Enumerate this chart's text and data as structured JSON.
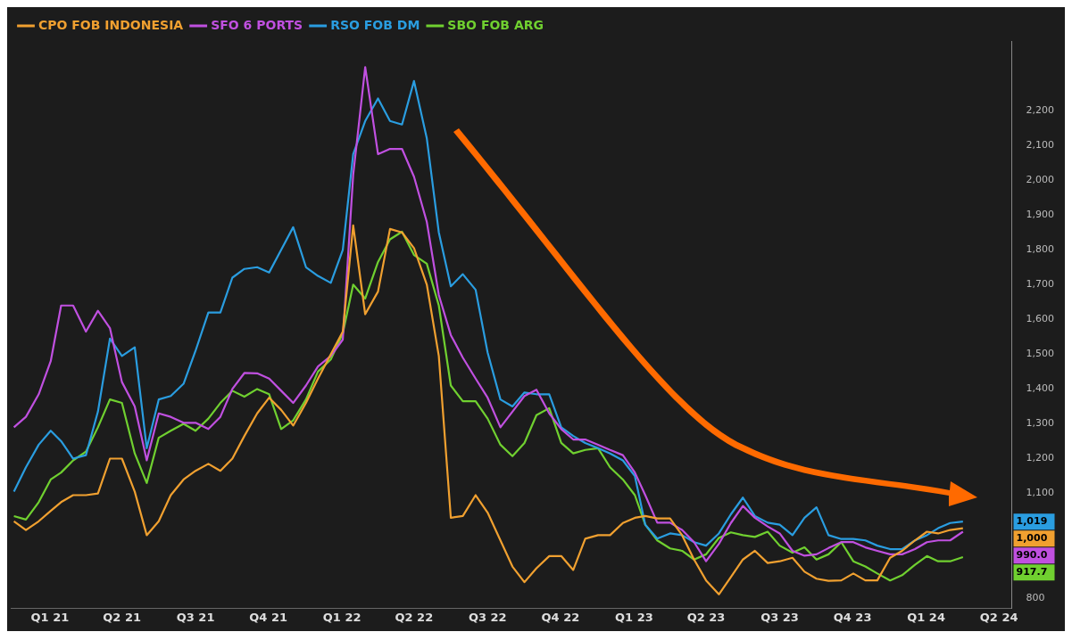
{
  "chart_data": {
    "type": "line",
    "legend": "top left",
    "grid": false,
    "marker": "none",
    "line_style": "solid",
    "x": [
      "2021-01-01",
      "2021-01-16",
      "2021-02-01",
      "2021-02-16",
      "2021-03-01",
      "2021-03-16",
      "2021-04-01",
      "2021-04-16",
      "2021-05-01",
      "2021-05-16",
      "2021-06-01",
      "2021-06-16",
      "2021-07-01",
      "2021-07-16",
      "2021-08-01",
      "2021-08-16",
      "2021-09-01",
      "2021-09-16",
      "2021-10-01",
      "2021-10-16",
      "2021-11-01",
      "2021-11-16",
      "2021-12-01",
      "2021-12-16",
      "2022-01-01",
      "2022-01-16",
      "2022-02-01",
      "2022-02-16",
      "2022-03-01",
      "2022-03-16",
      "2022-04-01",
      "2022-04-16",
      "2022-05-01",
      "2022-05-16",
      "2022-06-01",
      "2022-06-16",
      "2022-07-01",
      "2022-07-16",
      "2022-08-01",
      "2022-08-16",
      "2022-09-01",
      "2022-09-16",
      "2022-10-01",
      "2022-10-16",
      "2022-11-01",
      "2022-11-16",
      "2022-12-01",
      "2022-12-16",
      "2023-01-01",
      "2023-01-16",
      "2023-02-01",
      "2023-02-16",
      "2023-03-01",
      "2023-03-16",
      "2023-04-01",
      "2023-04-16",
      "2023-05-01",
      "2023-05-16",
      "2023-06-01",
      "2023-06-16",
      "2023-07-01",
      "2023-07-16",
      "2023-08-01",
      "2023-08-16",
      "2023-09-01",
      "2023-09-16",
      "2023-10-01",
      "2023-10-16",
      "2023-11-01",
      "2023-11-16",
      "2023-12-01",
      "2023-12-16",
      "2024-01-01",
      "2024-01-16",
      "2024-02-01",
      "2024-02-16",
      "2024-03-01",
      "2024-03-16",
      "2024-04-01"
    ],
    "xlim": [
      "2020-12-28",
      "2024-06-01"
    ],
    "xticks": [
      {
        "value": "2021-02-15",
        "label": "Q1 21"
      },
      {
        "value": "2021-05-16",
        "label": "Q2 21"
      },
      {
        "value": "2021-08-16",
        "label": "Q3 21"
      },
      {
        "value": "2021-11-15",
        "label": "Q4 21"
      },
      {
        "value": "2022-02-15",
        "label": "Q1 22"
      },
      {
        "value": "2022-05-16",
        "label": "Q2 22"
      },
      {
        "value": "2022-08-16",
        "label": "Q3 22"
      },
      {
        "value": "2022-11-15",
        "label": "Q4 22"
      },
      {
        "value": "2023-02-15",
        "label": "Q1 23"
      },
      {
        "value": "2023-05-16",
        "label": "Q2 23"
      },
      {
        "value": "2023-08-16",
        "label": "Q3 23"
      },
      {
        "value": "2023-11-15",
        "label": "Q4 23"
      },
      {
        "value": "2024-02-15",
        "label": "Q1 24"
      },
      {
        "value": "2024-05-16",
        "label": "Q2 24"
      }
    ],
    "ylim": [
      770,
      2400
    ],
    "yticks": [
      {
        "value": 800,
        "label": "800"
      },
      {
        "value": 1100,
        "label": "1,100"
      },
      {
        "value": 1200,
        "label": "1,200"
      },
      {
        "value": 1300,
        "label": "1,300"
      },
      {
        "value": 1400,
        "label": "1,400"
      },
      {
        "value": 1500,
        "label": "1,500"
      },
      {
        "value": 1600,
        "label": "1,600"
      },
      {
        "value": 1700,
        "label": "1,700"
      },
      {
        "value": 1800,
        "label": "1,800"
      },
      {
        "value": 1900,
        "label": "1,900"
      },
      {
        "value": 2000,
        "label": "2,000"
      },
      {
        "value": 2100,
        "label": "2,100"
      },
      {
        "value": 2200,
        "label": "2,200"
      }
    ],
    "annotations": [
      "1,019",
      "1,000",
      "990.0",
      "917.7"
    ],
    "series": [
      {
        "name": "CPO FOB INDONESIA",
        "color": "#f0a030",
        "values": [
          1020,
          995,
          1020,
          1050,
          1075,
          1095,
          1095,
          1100,
          1200,
          1200,
          1105,
          980,
          1020,
          1095,
          1140,
          1165,
          1185,
          1165,
          1200,
          1265,
          1330,
          1375,
          1340,
          1295,
          1360,
          1430,
          1500,
          1565,
          1870,
          1615,
          1680,
          1860,
          1850,
          1805,
          1700,
          1495,
          1030,
          1035,
          1095,
          1045,
          965,
          890,
          845,
          885,
          920,
          920,
          880,
          970,
          980,
          980,
          1015,
          1030,
          1035,
          1028,
          1028,
          980,
          910,
          850,
          810,
          860,
          910,
          935,
          900,
          905,
          915,
          875,
          855,
          849,
          850,
          870,
          850,
          850,
          915,
          935,
          965,
          990,
          985,
          995,
          1000
        ]
      },
      {
        "name": "SFO 6 PORTS",
        "color": "#c050e0",
        "values": [
          1290,
          1320,
          1385,
          1480,
          1640,
          1640,
          1565,
          1625,
          1575,
          1420,
          1350,
          1195,
          1330,
          1320,
          1303,
          1303,
          1285,
          1320,
          1400,
          1446,
          1445,
          1430,
          1395,
          1360,
          1410,
          1465,
          1495,
          1542,
          2015,
          2325,
          2075,
          2090,
          2090,
          2010,
          1880,
          1670,
          1555,
          1490,
          1430,
          1375,
          1290,
          1335,
          1380,
          1398,
          1330,
          1285,
          1255,
          1255,
          1240,
          1225,
          1210,
          1160,
          1095,
          1016,
          1016,
          995,
          960,
          905,
          955,
          1015,
          1064,
          1030,
          1005,
          985,
          935,
          921,
          925,
          943,
          960,
          960,
          945,
          935,
          925,
          925,
          940,
          960,
          965,
          965,
          990
        ]
      },
      {
        "name": "RSO FOB DM",
        "color": "#2a9de0",
        "values": [
          1105,
          1175,
          1240,
          1280,
          1250,
          1200,
          1210,
          1335,
          1545,
          1495,
          1520,
          1230,
          1370,
          1380,
          1415,
          1510,
          1620,
          1620,
          1720,
          1745,
          1750,
          1735,
          1800,
          1865,
          1750,
          1725,
          1705,
          1800,
          2075,
          2170,
          2235,
          2170,
          2160,
          2285,
          2120,
          1850,
          1695,
          1730,
          1685,
          1505,
          1370,
          1350,
          1390,
          1385,
          1385,
          1290,
          1265,
          1245,
          1230,
          1215,
          1195,
          1150,
          1010,
          970,
          985,
          980,
          960,
          950,
          985,
          1040,
          1088,
          1035,
          1016,
          1010,
          980,
          1030,
          1060,
          980,
          969,
          969,
          965,
          950,
          940,
          940,
          965,
          980,
          1000,
          1015,
          1019
        ]
      },
      {
        "name": "SBO FOB ARG",
        "color": "#70d030",
        "values": [
          1035,
          1025,
          1075,
          1140,
          1160,
          1195,
          1220,
          1290,
          1370,
          1360,
          1215,
          1130,
          1260,
          1280,
          1300,
          1280,
          1315,
          1360,
          1395,
          1378,
          1400,
          1385,
          1285,
          1310,
          1370,
          1450,
          1485,
          1560,
          1700,
          1660,
          1765,
          1830,
          1852,
          1785,
          1760,
          1640,
          1410,
          1365,
          1365,
          1315,
          1240,
          1207,
          1245,
          1325,
          1345,
          1245,
          1215,
          1225,
          1230,
          1175,
          1140,
          1095,
          1010,
          965,
          942,
          935,
          910,
          925,
          972,
          988,
          980,
          975,
          990,
          950,
          930,
          945,
          910,
          925,
          960,
          905,
          890,
          870,
          850,
          865,
          895,
          920,
          905,
          905,
          917
        ]
      }
    ]
  }
}
